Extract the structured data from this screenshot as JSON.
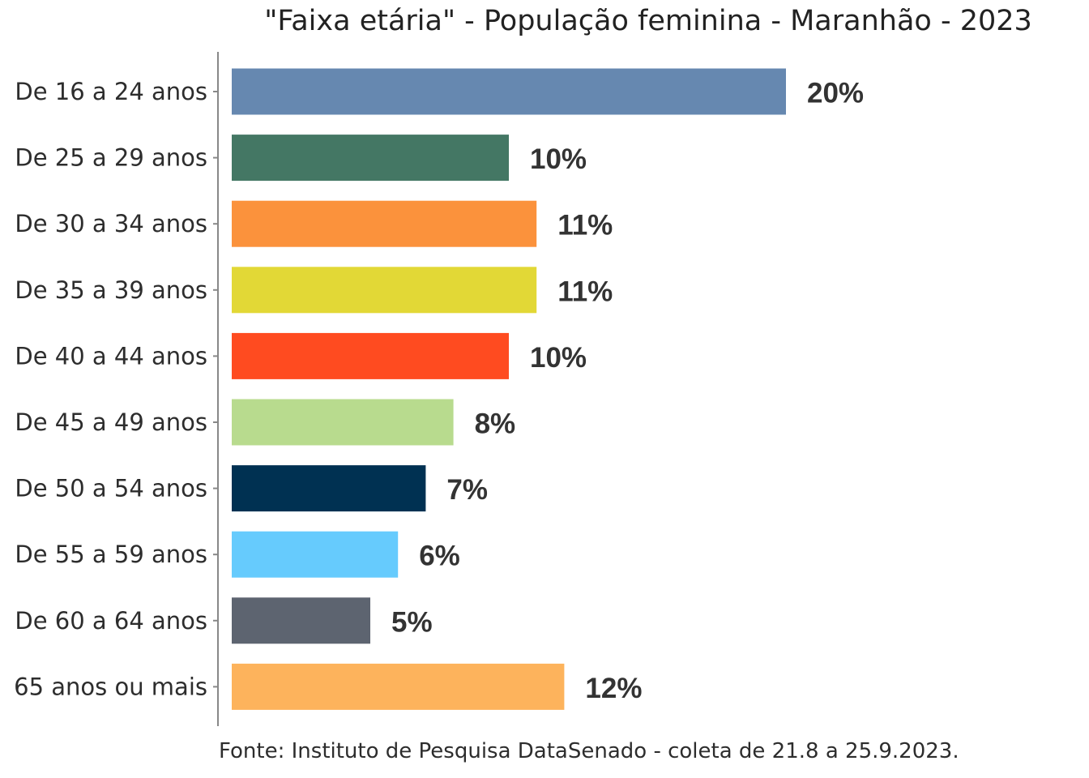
{
  "chart_data": {
    "type": "bar",
    "orientation": "horizontal",
    "title": "\"Faixa etária\" - População feminina - Maranhão - 2023",
    "source": "Fonte: Instituto de Pesquisa DataSenado - coleta de 21.8 a 25.9.2023.",
    "categories": [
      "De 16 a 24 anos",
      "De 25 a 29 anos",
      "De 30 a 34 anos",
      "De 35 a 39 anos",
      "De 40 a 44 anos",
      "De 45 a 49 anos",
      "De 50 a 54 anos",
      "De 55 a 59 anos",
      "De 60 a 64 anos",
      "65 anos ou mais"
    ],
    "values": [
      20,
      10,
      11,
      11,
      10,
      8,
      7,
      6,
      5,
      12
    ],
    "value_labels": [
      "20%",
      "10%",
      "11%",
      "11%",
      "10%",
      "8%",
      "7%",
      "6%",
      "5%",
      "12%"
    ],
    "colors": [
      "#6688b0",
      "#447764",
      "#fb923c",
      "#e2d836",
      "#ff4b20",
      "#b8db8e",
      "#003152",
      "#66cbfd",
      "#5d6470",
      "#fdb35c"
    ],
    "xlim": [
      0,
      30
    ],
    "grid": false,
    "legend": "none"
  }
}
